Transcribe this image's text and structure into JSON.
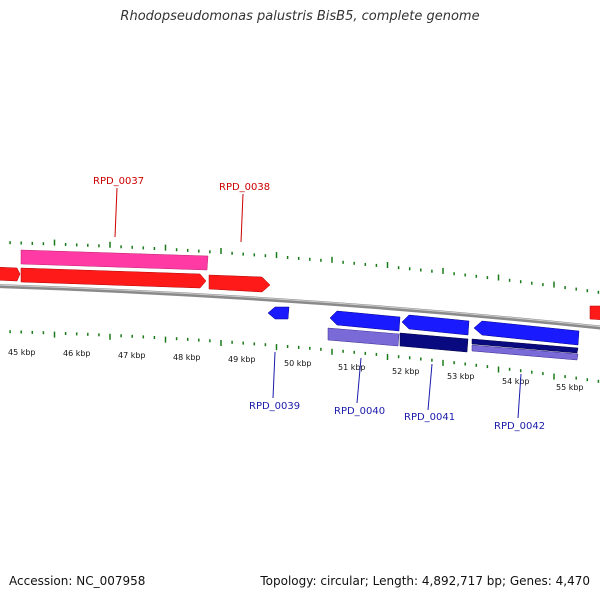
{
  "title": "Rhodopseudomonas palustris BisB5, complete genome",
  "accession": "Accession: NC_007958",
  "summary": "Topology: circular; Length: 4,892,717 bp; Genes: 4,470",
  "colors": {
    "backbone": "#8a8a8a",
    "tick": "#1a7a1a",
    "forward_label": "#cc0000",
    "reverse_label": "#1a1aaa",
    "forward_cds": "#ff1a1a",
    "forward_gene": "#ff3aa5",
    "reverse_cds": "#1a1aff",
    "reverse_gene_light": "#7a6ad8",
    "reverse_gene_dark": "#0a0a80"
  },
  "tick_labels": [
    "45 kbp",
    "46 kbp",
    "47 kbp",
    "48 kbp",
    "49 kbp",
    "50 kbp",
    "51 kbp",
    "52 kbp",
    "53 kbp",
    "54 kbp",
    "55 kbp"
  ],
  "gene_labels": {
    "RPD_0037": "RPD_0037",
    "RPD_0038": "RPD_0038",
    "RPD_0039": "RPD_0039",
    "RPD_0040": "RPD_0040",
    "RPD_0041": "RPD_0041",
    "RPD_0042": "RPD_0042"
  }
}
